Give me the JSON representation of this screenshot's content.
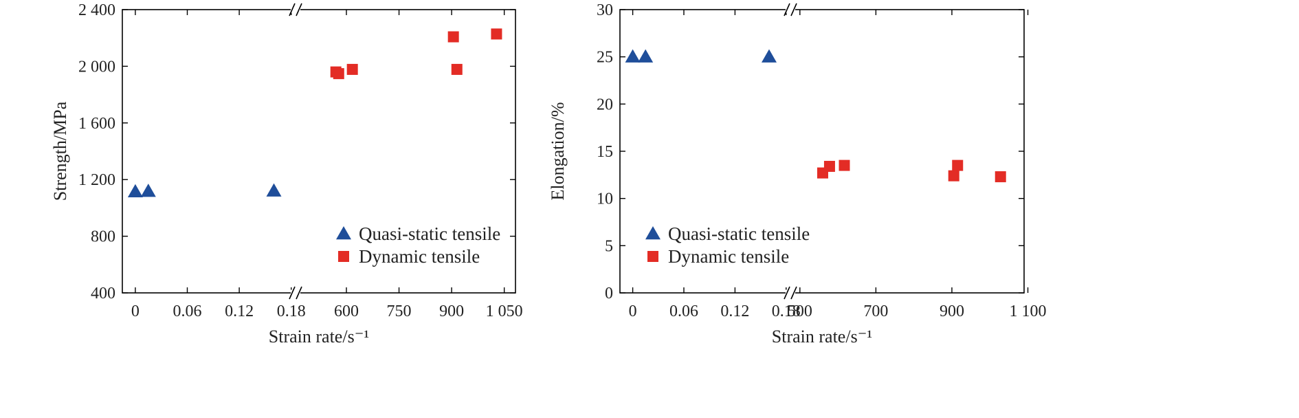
{
  "chart_data": [
    {
      "type": "scatter",
      "ylabel": "Strength/MPa",
      "xlabel": "Strain rate/s⁻¹",
      "ylim": [
        400,
        2400
      ],
      "y_ticks": [
        "400",
        "800",
        "1 200",
        "1 600",
        "2 000",
        "2 400"
      ],
      "x_broken": true,
      "x_segments": [
        {
          "range": [
            -0.015,
            0.185
          ],
          "ticks": [
            0,
            0.06,
            0.12,
            0.18
          ],
          "tick_labels": [
            "0",
            "0.06",
            "0.12",
            "0.18"
          ]
        },
        {
          "range": [
            455,
            1082
          ],
          "ticks": [
            600,
            750,
            900,
            1050
          ],
          "tick_labels": [
            "600",
            "750",
            "900",
            "1 050"
          ]
        }
      ],
      "legend_position": "bottom-right",
      "series": [
        {
          "name": "Quasi-static tensile",
          "marker": "triangle",
          "color": "#1f4e9a",
          "segment": 0,
          "x": [
            0.0,
            0.015,
            0.16
          ],
          "y": [
            1115,
            1118,
            1120
          ]
        },
        {
          "name": "Dynamic tensile",
          "marker": "square",
          "color": "#e32c25",
          "segment": 1,
          "x": [
            570,
            578,
            617,
            905,
            915,
            1028
          ],
          "y": [
            1960,
            1948,
            1978,
            2208,
            1978,
            2228
          ]
        }
      ]
    },
    {
      "type": "scatter",
      "ylabel": "Elongation/%",
      "xlabel": "Strain rate/s⁻¹",
      "ylim": [
        0,
        30
      ],
      "y_ticks": [
        "0",
        "5",
        "10",
        "15",
        "20",
        "25",
        "30"
      ],
      "x_broken": true,
      "x_segments": [
        {
          "range": [
            -0.015,
            0.185
          ],
          "ticks": [
            0,
            0.06,
            0.12,
            0.18
          ],
          "tick_labels": [
            "0",
            "0.06",
            "0.12",
            "0.18"
          ]
        },
        {
          "range": [
            475,
            1090
          ],
          "ticks": [
            500,
            700,
            900,
            1100
          ],
          "tick_labels": [
            "500",
            "700",
            "900",
            "1 100"
          ]
        }
      ],
      "legend_position": "bottom-left",
      "series": [
        {
          "name": "Quasi-static tensile",
          "marker": "triangle",
          "color": "#1f4e9a",
          "segment": 0,
          "x": [
            0.0,
            0.015,
            0.16
          ],
          "y": [
            25,
            25,
            25
          ]
        },
        {
          "name": "Dynamic tensile",
          "marker": "square",
          "color": "#e32c25",
          "segment": 1,
          "x": [
            560,
            578,
            617,
            905,
            915,
            1028
          ],
          "y": [
            12.7,
            13.4,
            13.5,
            12.4,
            13.5,
            12.3
          ]
        }
      ]
    }
  ]
}
